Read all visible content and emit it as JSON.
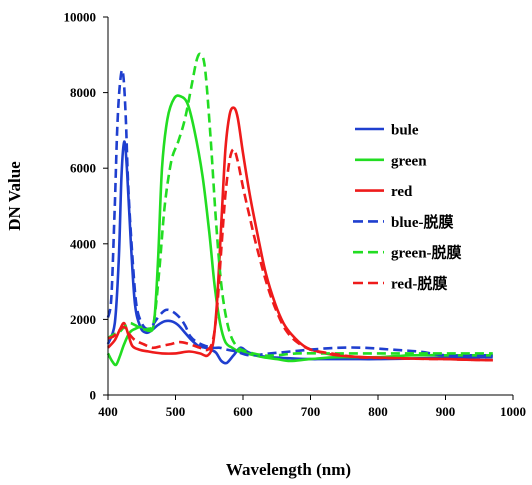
{
  "chart_data": {
    "type": "line",
    "title": "",
    "xlabel": "Wavelength (nm)",
    "ylabel": "DN Value",
    "xlim": [
      400,
      1000
    ],
    "ylim": [
      0,
      10000
    ],
    "x_ticks": [
      400,
      500,
      600,
      700,
      800,
      900,
      1000
    ],
    "y_ticks": [
      0,
      2000,
      4000,
      6000,
      8000,
      10000
    ],
    "grid": false,
    "legend_position": "right",
    "series": [
      {
        "name": "bule",
        "color": "#1f3fcf",
        "dash": "solid",
        "points": [
          [
            400,
            1350
          ],
          [
            410,
            1900
          ],
          [
            416,
            3600
          ],
          [
            420,
            5800
          ],
          [
            424,
            6700
          ],
          [
            428,
            6000
          ],
          [
            434,
            4000
          ],
          [
            440,
            2400
          ],
          [
            448,
            1800
          ],
          [
            456,
            1650
          ],
          [
            464,
            1700
          ],
          [
            474,
            1850
          ],
          [
            484,
            1950
          ],
          [
            494,
            1950
          ],
          [
            504,
            1850
          ],
          [
            514,
            1650
          ],
          [
            524,
            1450
          ],
          [
            534,
            1300
          ],
          [
            544,
            1250
          ],
          [
            552,
            1200
          ],
          [
            560,
            1120
          ],
          [
            568,
            900
          ],
          [
            576,
            850
          ],
          [
            586,
            1050
          ],
          [
            596,
            1250
          ],
          [
            606,
            1150
          ],
          [
            620,
            1050
          ],
          [
            640,
            1000
          ],
          [
            660,
            980
          ],
          [
            680,
            960
          ],
          [
            700,
            950
          ],
          [
            720,
            950
          ],
          [
            760,
            950
          ],
          [
            800,
            950
          ],
          [
            840,
            960
          ],
          [
            880,
            980
          ],
          [
            920,
            1000
          ],
          [
            970,
            1000
          ]
        ]
      },
      {
        "name": "green",
        "color": "#22dd22",
        "dash": "solid",
        "points": [
          [
            400,
            1100
          ],
          [
            406,
            900
          ],
          [
            412,
            800
          ],
          [
            418,
            1050
          ],
          [
            424,
            1350
          ],
          [
            432,
            1650
          ],
          [
            440,
            1750
          ],
          [
            450,
            1800
          ],
          [
            460,
            1700
          ],
          [
            468,
            1900
          ],
          [
            474,
            3500
          ],
          [
            480,
            6000
          ],
          [
            488,
            7300
          ],
          [
            498,
            7850
          ],
          [
            508,
            7900
          ],
          [
            518,
            7700
          ],
          [
            528,
            7000
          ],
          [
            540,
            5800
          ],
          [
            550,
            4300
          ],
          [
            558,
            2900
          ],
          [
            566,
            1900
          ],
          [
            574,
            1400
          ],
          [
            584,
            1250
          ],
          [
            594,
            1150
          ],
          [
            610,
            1080
          ],
          [
            630,
            1000
          ],
          [
            650,
            950
          ],
          [
            670,
            900
          ],
          [
            700,
            950
          ],
          [
            740,
            1000
          ],
          [
            800,
            1000
          ],
          [
            850,
            1050
          ],
          [
            900,
            1050
          ],
          [
            940,
            1050
          ],
          [
            970,
            1050
          ]
        ]
      },
      {
        "name": "red",
        "color": "#ee1b1b",
        "dash": "solid",
        "points": [
          [
            400,
            1250
          ],
          [
            410,
            1450
          ],
          [
            418,
            1750
          ],
          [
            424,
            1900
          ],
          [
            430,
            1600
          ],
          [
            436,
            1300
          ],
          [
            446,
            1200
          ],
          [
            460,
            1150
          ],
          [
            480,
            1100
          ],
          [
            500,
            1100
          ],
          [
            520,
            1150
          ],
          [
            536,
            1100
          ],
          [
            548,
            1050
          ],
          [
            556,
            1400
          ],
          [
            562,
            2600
          ],
          [
            568,
            4600
          ],
          [
            574,
            6500
          ],
          [
            580,
            7400
          ],
          [
            586,
            7600
          ],
          [
            592,
            7350
          ],
          [
            600,
            6400
          ],
          [
            610,
            5300
          ],
          [
            622,
            4200
          ],
          [
            634,
            3200
          ],
          [
            648,
            2400
          ],
          [
            660,
            1900
          ],
          [
            672,
            1600
          ],
          [
            690,
            1300
          ],
          [
            710,
            1150
          ],
          [
            740,
            1050
          ],
          [
            780,
            1000
          ],
          [
            820,
            980
          ],
          [
            860,
            960
          ],
          [
            900,
            950
          ],
          [
            940,
            930
          ],
          [
            970,
            920
          ]
        ]
      },
      {
        "name": "blue-脱膜",
        "color": "#1f3fcf",
        "dash": "dashed",
        "points": [
          [
            400,
            2050
          ],
          [
            405,
            2600
          ],
          [
            410,
            5000
          ],
          [
            414,
            7200
          ],
          [
            418,
            8300
          ],
          [
            422,
            8550
          ],
          [
            426,
            7500
          ],
          [
            430,
            5500
          ],
          [
            436,
            3700
          ],
          [
            442,
            2400
          ],
          [
            450,
            1900
          ],
          [
            458,
            1750
          ],
          [
            466,
            1850
          ],
          [
            476,
            2100
          ],
          [
            486,
            2250
          ],
          [
            496,
            2200
          ],
          [
            506,
            2050
          ],
          [
            514,
            1850
          ],
          [
            522,
            1550
          ],
          [
            532,
            1400
          ],
          [
            544,
            1300
          ],
          [
            556,
            1250
          ],
          [
            566,
            1250
          ],
          [
            576,
            1200
          ],
          [
            590,
            1150
          ],
          [
            610,
            1050
          ],
          [
            640,
            1100
          ],
          [
            670,
            1150
          ],
          [
            700,
            1200
          ],
          [
            740,
            1250
          ],
          [
            780,
            1250
          ],
          [
            820,
            1200
          ],
          [
            860,
            1150
          ],
          [
            900,
            1050
          ],
          [
            940,
            1050
          ],
          [
            970,
            1050
          ]
        ]
      },
      {
        "name": "green-脱膜",
        "color": "#22dd22",
        "dash": "dashed",
        "points": [
          [
            400,
            1500
          ],
          [
            408,
            1600
          ],
          [
            416,
            1650
          ],
          [
            424,
            1800
          ],
          [
            432,
            1900
          ],
          [
            440,
            1850
          ],
          [
            450,
            1750
          ],
          [
            460,
            1750
          ],
          [
            468,
            1950
          ],
          [
            476,
            3300
          ],
          [
            484,
            5000
          ],
          [
            494,
            6200
          ],
          [
            504,
            6700
          ],
          [
            514,
            7300
          ],
          [
            524,
            8200
          ],
          [
            532,
            8900
          ],
          [
            538,
            9000
          ],
          [
            544,
            8600
          ],
          [
            552,
            6800
          ],
          [
            560,
            4600
          ],
          [
            568,
            2900
          ],
          [
            578,
            1800
          ],
          [
            590,
            1300
          ],
          [
            606,
            1150
          ],
          [
            630,
            1050
          ],
          [
            650,
            1050
          ],
          [
            680,
            1100
          ],
          [
            720,
            1100
          ],
          [
            760,
            1100
          ],
          [
            800,
            1100
          ],
          [
            840,
            1100
          ],
          [
            880,
            1100
          ],
          [
            920,
            1100
          ],
          [
            970,
            1100
          ]
        ]
      },
      {
        "name": "red-脱膜",
        "color": "#ee1b1b",
        "dash": "dashed",
        "points": [
          [
            400,
            1500
          ],
          [
            408,
            1550
          ],
          [
            416,
            1700
          ],
          [
            424,
            1800
          ],
          [
            432,
            1600
          ],
          [
            440,
            1450
          ],
          [
            452,
            1350
          ],
          [
            466,
            1250
          ],
          [
            480,
            1300
          ],
          [
            494,
            1350
          ],
          [
            506,
            1400
          ],
          [
            520,
            1350
          ],
          [
            536,
            1250
          ],
          [
            548,
            1200
          ],
          [
            556,
            1500
          ],
          [
            562,
            2400
          ],
          [
            568,
            3900
          ],
          [
            574,
            5300
          ],
          [
            580,
            6200
          ],
          [
            586,
            6500
          ],
          [
            592,
            6200
          ],
          [
            600,
            5500
          ],
          [
            610,
            4700
          ],
          [
            622,
            3800
          ],
          [
            636,
            2900
          ],
          [
            650,
            2200
          ],
          [
            664,
            1700
          ],
          [
            680,
            1400
          ],
          [
            700,
            1200
          ],
          [
            730,
            1100
          ],
          [
            770,
            1000
          ],
          [
            810,
            980
          ],
          [
            850,
            960
          ],
          [
            900,
            950
          ],
          [
            940,
            930
          ],
          [
            970,
            920
          ]
        ]
      }
    ]
  }
}
